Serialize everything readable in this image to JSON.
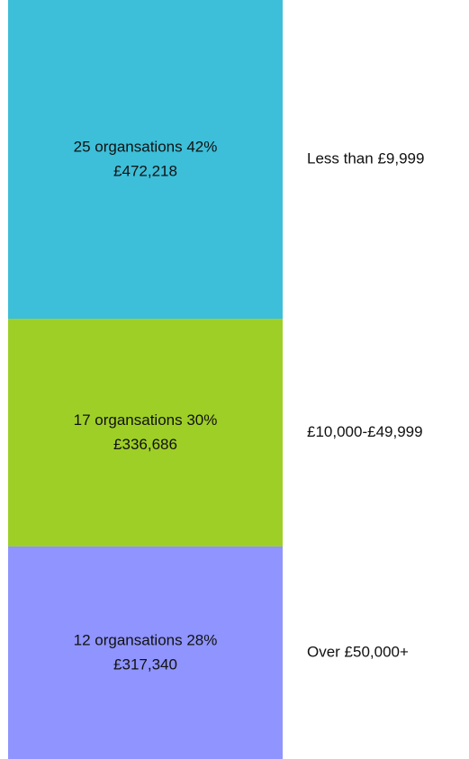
{
  "chart_data": {
    "type": "stacked-bar",
    "categories": [
      "Less than £9,999",
      "£10,000-£49,999",
      "Over £50,000+"
    ],
    "values": [
      42,
      30,
      28
    ],
    "value_labels": [
      "25 organsations 42%",
      "17 organsations 30%",
      "12 organsations 28%"
    ],
    "amounts": [
      "£472,218",
      "£336,686",
      "£317,340"
    ],
    "colors": [
      "#3dbfd9",
      "#9ecf26",
      "#8f94fe"
    ],
    "ylim": [
      0,
      100
    ]
  }
}
